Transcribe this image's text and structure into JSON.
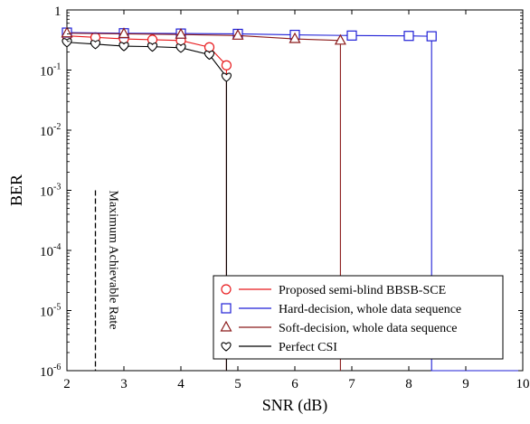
{
  "chart_data": {
    "type": "line",
    "xlabel": "SNR (dB)",
    "ylabel": "BER",
    "xlim": [
      2,
      10
    ],
    "ylim": [
      1e-06,
      1
    ],
    "yscale": "log",
    "grid": false,
    "legend_position": "bottom-right",
    "x_ticks": [
      2,
      3,
      4,
      5,
      6,
      7,
      8,
      9,
      10
    ],
    "x_tick_labels": [
      "2",
      "3",
      "4",
      "5",
      "6",
      "7",
      "8",
      "9",
      "10"
    ],
    "y_ticks": [
      {
        "value": 1,
        "base": "1",
        "exp": ""
      },
      {
        "value": 0.1,
        "base": "10",
        "exp": "-1"
      },
      {
        "value": 0.01,
        "base": "10",
        "exp": "-2"
      },
      {
        "value": 0.001,
        "base": "10",
        "exp": "-3"
      },
      {
        "value": 0.0001,
        "base": "10",
        "exp": "-4"
      },
      {
        "value": 1e-05,
        "base": "10",
        "exp": "-5"
      },
      {
        "value": 1e-06,
        "base": "10",
        "exp": "-6"
      }
    ],
    "series": [
      {
        "name": "Proposed semi-blind BBSB-SCE",
        "color": "#e8191c",
        "marker": "circle",
        "x": [
          2,
          2.5,
          3,
          3.5,
          4,
          4.5,
          4.8,
          4.8
        ],
        "y": [
          0.37,
          0.35,
          0.33,
          0.32,
          0.31,
          0.24,
          0.12,
          1e-06
        ]
      },
      {
        "name": "Hard-decision, whole data sequence",
        "color": "#1f1fd6",
        "marker": "square",
        "x": [
          2,
          3,
          4,
          5,
          6,
          7,
          8,
          8.4,
          8.4,
          10
        ],
        "y": [
          0.42,
          0.41,
          0.405,
          0.4,
          0.385,
          0.375,
          0.37,
          0.365,
          1e-06,
          1e-06
        ]
      },
      {
        "name": "Soft-decision, whole data sequence",
        "color": "#8b1a1a",
        "marker": "triangle",
        "x": [
          2,
          3,
          4,
          5,
          6,
          6.8,
          6.8
        ],
        "y": [
          0.41,
          0.4,
          0.39,
          0.375,
          0.33,
          0.31,
          1e-06
        ]
      },
      {
        "name": "Perfect CSI",
        "color": "#000000",
        "marker": "heart",
        "x": [
          2,
          2.5,
          3,
          3.5,
          4,
          4.5,
          4.8,
          4.8
        ],
        "y": [
          0.29,
          0.27,
          0.25,
          0.245,
          0.235,
          0.18,
          0.077,
          1e-06
        ]
      }
    ],
    "markers_x": {
      "Proposed semi-blind BBSB-SCE": [
        2,
        2.5,
        3,
        3.5,
        4,
        4.5,
        4.8
      ],
      "Hard-decision, whole data sequence": [
        2,
        3,
        4,
        5,
        6,
        7,
        8,
        8.4
      ],
      "Soft-decision, whole data sequence": [
        2,
        3,
        4,
        5,
        6,
        6.8
      ],
      "Perfect CSI": [
        2,
        2.5,
        3,
        3.5,
        4,
        4.5,
        4.8
      ]
    },
    "annotations": [
      {
        "text": "Maximum Achievable Rate",
        "x": 2.5,
        "y_from": 0.001,
        "y_to": 1e-06,
        "style": "dashed"
      }
    ]
  }
}
